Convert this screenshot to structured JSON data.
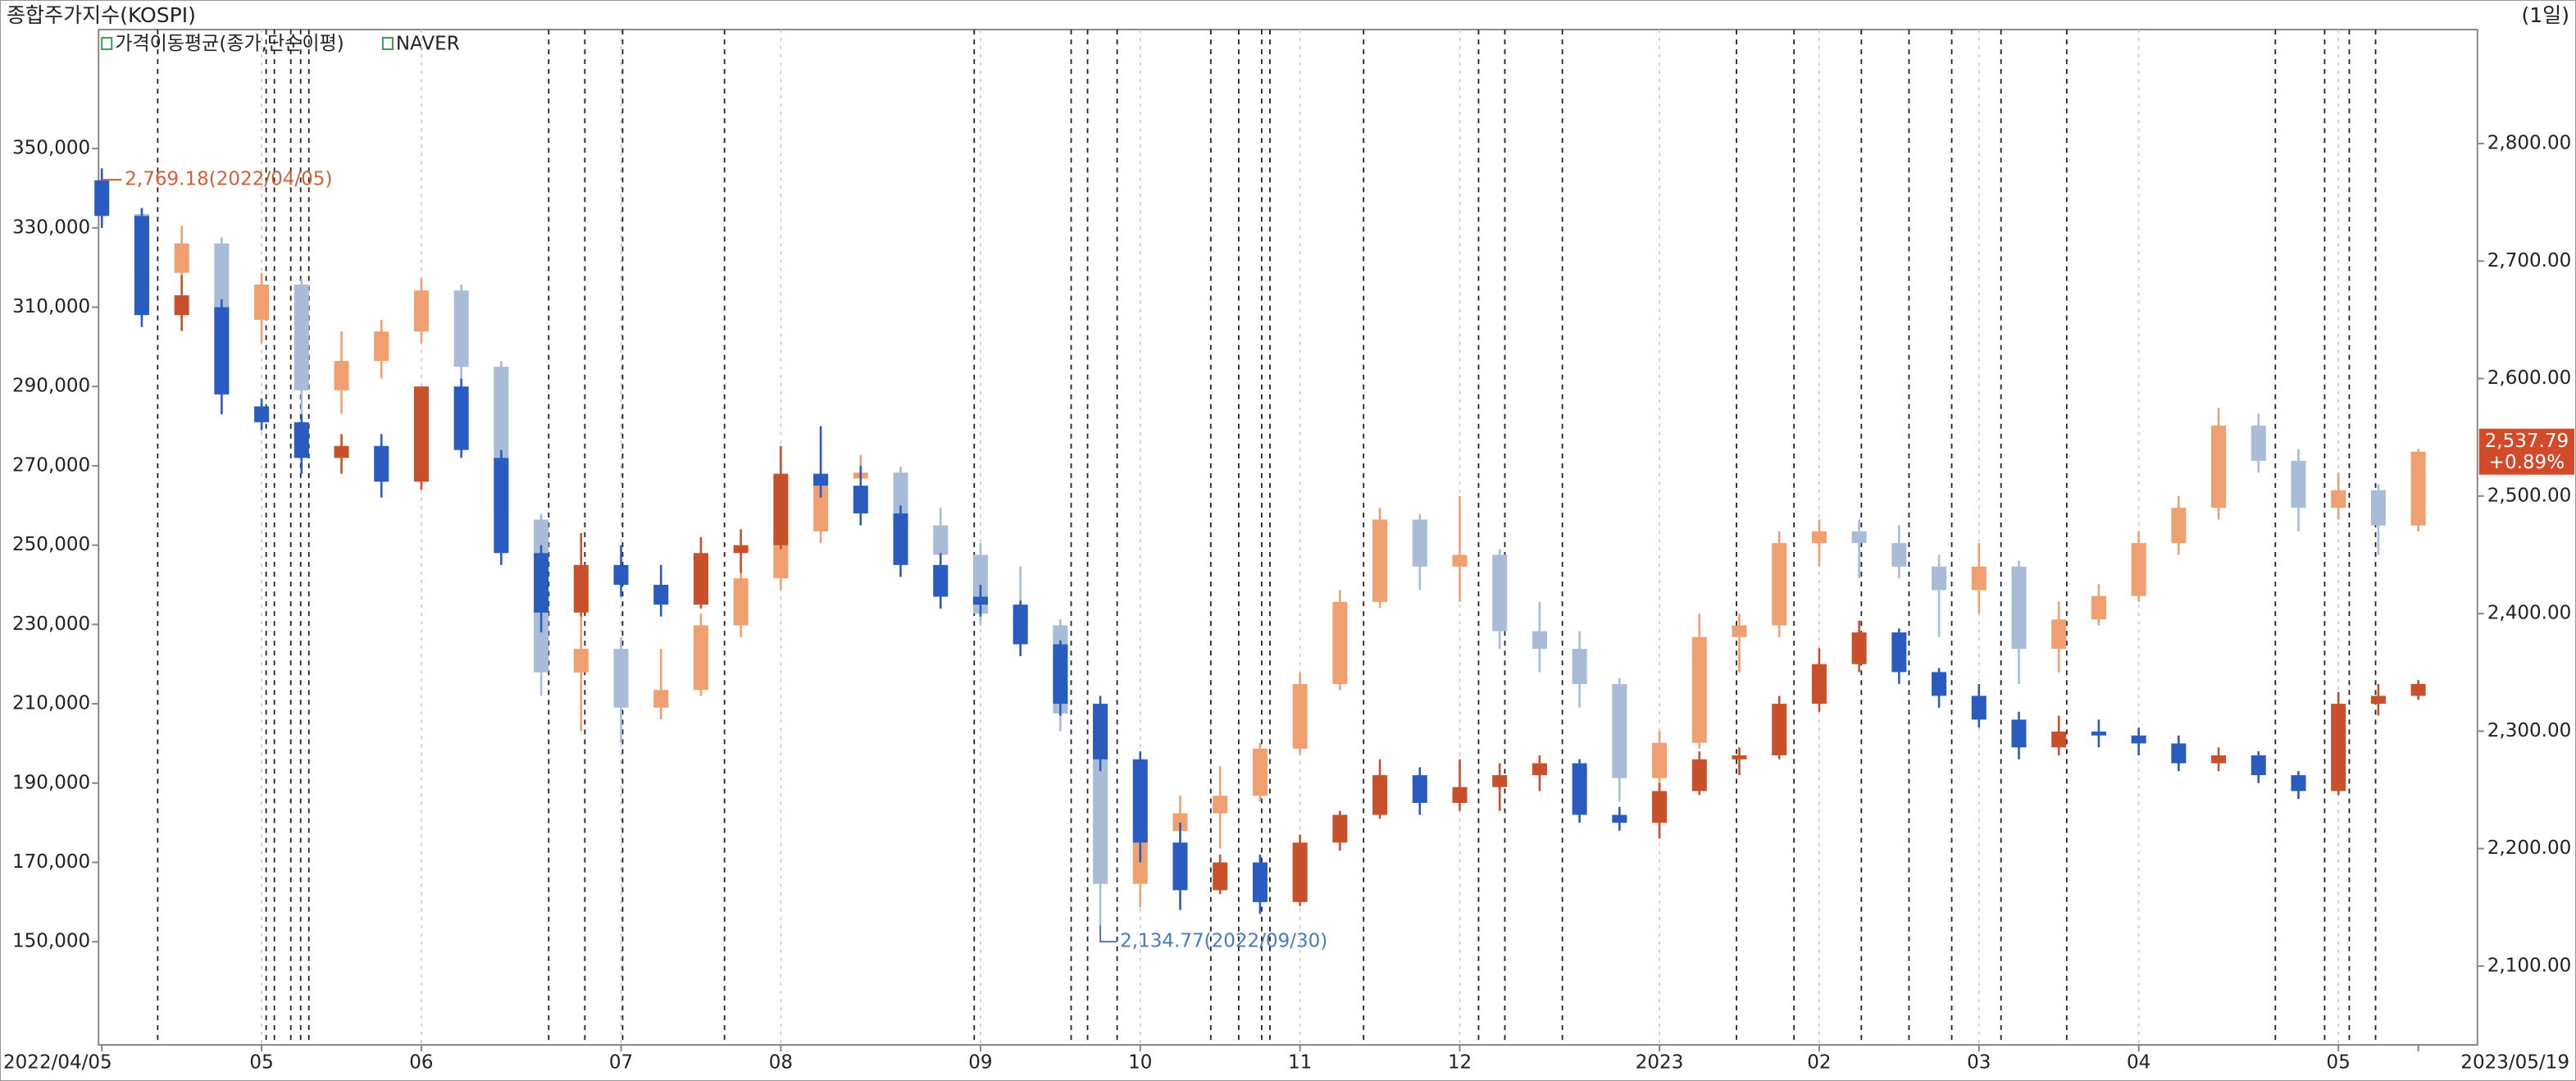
{
  "chart_data": {
    "type": "candlestick",
    "title": "종합주가지수(KOSPI)",
    "period": "(1일)",
    "legend": [
      "가격이동평균(종가,단순이평)"
    ],
    "categories": [
      "2022/04/05",
      null,
      null,
      null,
      "05",
      null,
      null,
      null,
      "06",
      null,
      null,
      null,
      null,
      "07",
      null,
      null,
      null,
      "08",
      null,
      null,
      null,
      null,
      "09",
      null,
      null,
      null,
      "10",
      null,
      null,
      null,
      "11",
      null,
      null,
      null,
      "12",
      null,
      null,
      null,
      null,
      "2023",
      null,
      null,
      null,
      "02",
      null,
      null,
      null,
      "03",
      null,
      null,
      null,
      "04",
      null,
      null,
      null,
      null,
      "05",
      null,
      "2023/05/19"
    ],
    "ylim": [
      124000,
      380000
    ],
    "yticks": [
      {
        "value": 150000,
        "label": "150,000"
      },
      {
        "value": 170000,
        "label": "170,000"
      },
      {
        "value": 190000,
        "label": "190,000"
      },
      {
        "value": 210000,
        "label": "210,000"
      },
      {
        "value": 230000,
        "label": "230,000"
      },
      {
        "value": 250000,
        "label": "250,000"
      },
      {
        "value": 270000,
        "label": "270,000"
      },
      {
        "value": 290000,
        "label": "290,000"
      },
      {
        "value": 310000,
        "label": "310,000"
      },
      {
        "value": 330000,
        "label": "330,000"
      },
      {
        "value": 350000,
        "label": "350,000"
      }
    ],
    "y2lim": [
      2033,
      2897
    ],
    "y2ticks": [
      {
        "value": 2100,
        "label": "2,100.00"
      },
      {
        "value": 2200,
        "label": "2,200.00"
      },
      {
        "value": 2300,
        "label": "2,300.00"
      },
      {
        "value": 2400,
        "label": "2,400.00"
      },
      {
        "value": 2500,
        "label": "2,500.00"
      },
      {
        "value": 2600,
        "label": "2,600.00"
      },
      {
        "value": 2700,
        "label": "2,700.00"
      },
      {
        "value": 2800,
        "label": "2,800.00"
      }
    ],
    "series": [
      {
        "name": "NAVER",
        "axis": "y",
        "up_color": "#c8502a",
        "down_color": "#2a5cc0",
        "open": [
          342000,
          333000,
          308000,
          310000,
          285000,
          281000,
          272000,
          275000,
          266000,
          290000,
          272000,
          248000,
          233000,
          245000,
          240000,
          235000,
          248000,
          250000,
          268000,
          265000,
          258000,
          245000,
          237000,
          235000,
          225000,
          210000,
          196000,
          175000,
          163000,
          170000,
          160000,
          175000,
          182000,
          192000,
          185000,
          189000,
          192000,
          195000,
          182000,
          180000,
          188000,
          196000,
          197000,
          210000,
          220000,
          228000,
          218000,
          212000,
          206000,
          199000,
          203000,
          202000,
          200000,
          195000,
          197000,
          192000,
          188000,
          210000,
          212000
        ],
        "high": [
          345000,
          335000,
          318000,
          312000,
          287000,
          283000,
          278000,
          278000,
          290000,
          292000,
          274000,
          250000,
          253000,
          250000,
          245000,
          252000,
          254000,
          275000,
          280000,
          270000,
          260000,
          248000,
          240000,
          236000,
          226000,
          212000,
          198000,
          180000,
          172000,
          172000,
          177000,
          183000,
          196000,
          194000,
          196000,
          195000,
          197000,
          196000,
          184000,
          190000,
          198000,
          199000,
          212000,
          224000,
          231000,
          229000,
          219000,
          215000,
          208000,
          207000,
          206000,
          204000,
          202000,
          199000,
          198000,
          193000,
          213000,
          215000,
          216000
        ],
        "low": [
          330000,
          305000,
          304000,
          283000,
          279000,
          268000,
          268000,
          262000,
          264000,
          272000,
          245000,
          228000,
          232000,
          237000,
          232000,
          234000,
          243000,
          249000,
          262000,
          255000,
          242000,
          234000,
          232000,
          222000,
          207000,
          193000,
          170000,
          158000,
          162000,
          157000,
          159000,
          173000,
          181000,
          182000,
          183000,
          183000,
          188000,
          180000,
          178000,
          176000,
          187000,
          192000,
          196000,
          208000,
          218000,
          215000,
          209000,
          204000,
          196000,
          197000,
          199000,
          197000,
          193000,
          193000,
          190000,
          186000,
          187000,
          207000,
          211000
        ],
        "close": [
          333000,
          308000,
          313000,
          288000,
          281000,
          272000,
          275000,
          266000,
          290000,
          274000,
          248000,
          233000,
          245000,
          240000,
          235000,
          248000,
          250000,
          268000,
          265000,
          258000,
          245000,
          237000,
          235000,
          225000,
          210000,
          196000,
          175000,
          163000,
          170000,
          160000,
          175000,
          182000,
          192000,
          185000,
          189000,
          192000,
          195000,
          182000,
          180000,
          188000,
          196000,
          197000,
          210000,
          220000,
          228000,
          218000,
          212000,
          206000,
          199000,
          203000,
          202000,
          200000,
          195000,
          197000,
          192000,
          188000,
          210000,
          212000,
          215000
        ]
      },
      {
        "axis": "y2",
        "up_color": "#f0a070",
        "down_color": "#a8bcd8",
        "open": [
          2757,
          2740,
          2690,
          2715,
          2650,
          2680,
          2590,
          2615,
          2640,
          2675,
          2610,
          2480,
          2350,
          2370,
          2320,
          2335,
          2390,
          2430,
          2470,
          2515,
          2520,
          2475,
          2450,
          2400,
          2390,
          2315,
          2170,
          2215,
          2230,
          2245,
          2285,
          2340,
          2410,
          2480,
          2440,
          2450,
          2385,
          2370,
          2340,
          2260,
          2290,
          2380,
          2390,
          2460,
          2470,
          2460,
          2440,
          2420,
          2440,
          2370,
          2395,
          2415,
          2460,
          2490,
          2560,
          2530,
          2490,
          2505,
          2475
        ],
        "high": [
          2769.18,
          2745,
          2730,
          2720,
          2690,
          2685,
          2640,
          2650,
          2685,
          2680,
          2615,
          2485,
          2400,
          2380,
          2370,
          2400,
          2440,
          2480,
          2530,
          2535,
          2525,
          2490,
          2460,
          2440,
          2395,
          2320,
          2230,
          2245,
          2270,
          2290,
          2350,
          2420,
          2490,
          2485,
          2500,
          2455,
          2410,
          2385,
          2345,
          2300,
          2400,
          2400,
          2470,
          2480,
          2480,
          2475,
          2450,
          2460,
          2445,
          2410,
          2425,
          2470,
          2500,
          2575,
          2570,
          2540,
          2520,
          2510,
          2540
        ],
        "low": [
          2735,
          2650,
          2680,
          2640,
          2630,
          2550,
          2570,
          2600,
          2630,
          2590,
          2470,
          2330,
          2300,
          2290,
          2310,
          2330,
          2380,
          2420,
          2460,
          2500,
          2460,
          2430,
          2390,
          2380,
          2300,
          2134.77,
          2150,
          2190,
          2200,
          2240,
          2280,
          2335,
          2405,
          2420,
          2410,
          2370,
          2350,
          2320,
          2240,
          2220,
          2285,
          2350,
          2380,
          2440,
          2430,
          2430,
          2380,
          2400,
          2340,
          2350,
          2390,
          2410,
          2450,
          2480,
          2520,
          2470,
          2480,
          2450,
          2470
        ],
        "close": [
          2740,
          2690,
          2715,
          2650,
          2680,
          2590,
          2615,
          2640,
          2675,
          2610,
          2480,
          2350,
          2370,
          2320,
          2335,
          2390,
          2430,
          2470,
          2515,
          2520,
          2475,
          2450,
          2400,
          2390,
          2315,
          2170,
          2215,
          2230,
          2245,
          2285,
          2340,
          2410,
          2480,
          2440,
          2450,
          2385,
          2370,
          2340,
          2260,
          2290,
          2380,
          2390,
          2460,
          2470,
          2460,
          2440,
          2420,
          2440,
          2370,
          2395,
          2415,
          2460,
          2490,
          2560,
          2530,
          2490,
          2505,
          2475,
          2537.79
        ]
      }
    ],
    "annotations": {
      "max_label": "2,769.18(2022/04/05)",
      "min_label": "2,134.77(2022/09/30)",
      "last_label": "2,537.79",
      "change_label": "+0.89%"
    }
  }
}
